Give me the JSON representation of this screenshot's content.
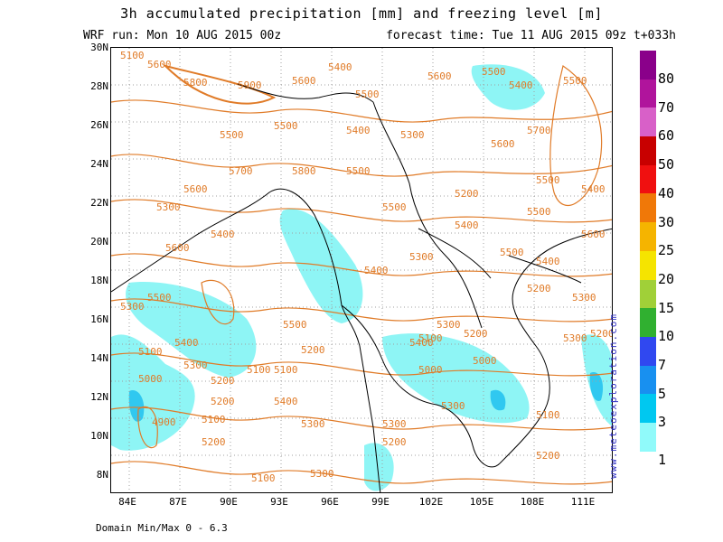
{
  "header": {
    "title": "3h accumulated precipitation [mm] and freezing level [m]",
    "run_label": "WRF run: Mon 10 AUG 2015 00z",
    "forecast_label": "forecast time: Tue 11 AUG 2015 09z  t+033h"
  },
  "map": {
    "lat_labels": [
      "30N",
      "28N",
      "26N",
      "24N",
      "22N",
      "20N",
      "18N",
      "16N",
      "14N",
      "12N",
      "10N",
      "8N"
    ],
    "lon_labels": [
      "84E",
      "87E",
      "90E",
      "93E",
      "96E",
      "99E",
      "102E",
      "105E",
      "108E",
      "111E"
    ],
    "contour_labels": [
      "5100",
      "5600",
      "5800",
      "5900",
      "5600",
      "5400",
      "5500",
      "5600",
      "5500",
      "5400",
      "5500",
      "5500",
      "5500",
      "5400",
      "5300",
      "5600",
      "5700",
      "5800",
      "5700",
      "5600",
      "5200",
      "5500",
      "5400",
      "5300",
      "5500",
      "5600",
      "5400",
      "5500",
      "5300",
      "5400",
      "5500",
      "5500",
      "5300",
      "5400",
      "5600",
      "5500",
      "5400",
      "5300",
      "5200",
      "5500",
      "5300",
      "5400",
      "5300",
      "5200",
      "5100",
      "5000",
      "4900",
      "5200",
      "5300",
      "5100",
      "5000",
      "5200",
      "5100",
      "5400",
      "5300",
      "5200",
      "5100",
      "5000",
      "5200",
      "5300",
      "5300",
      "5200",
      "5100",
      "5100",
      "5300",
      "5200",
      "5100",
      "5200",
      "5400"
    ],
    "colors": {
      "contour": "#e07b28",
      "precip_light": "#8ef5f5",
      "precip_med": "#30c8f0",
      "coast": "#000000",
      "grid": "#a0a0a0"
    }
  },
  "colorbar": {
    "ticks": [
      "80",
      "70",
      "60",
      "50",
      "40",
      "30",
      "25",
      "20",
      "15",
      "10",
      "7",
      "5",
      "3",
      "1"
    ],
    "colors": [
      "#8a008a",
      "#b0149c",
      "#d860c8",
      "#c80000",
      "#f01010",
      "#f07808",
      "#f5b400",
      "#f5e400",
      "#a0d038",
      "#30b030",
      "#3048f0",
      "#1890f0",
      "#00c8f0",
      "#90fafa"
    ]
  },
  "credit": "www.meteoexploration.com",
  "footer": "Domain Min/Max 0 - 6.3"
}
